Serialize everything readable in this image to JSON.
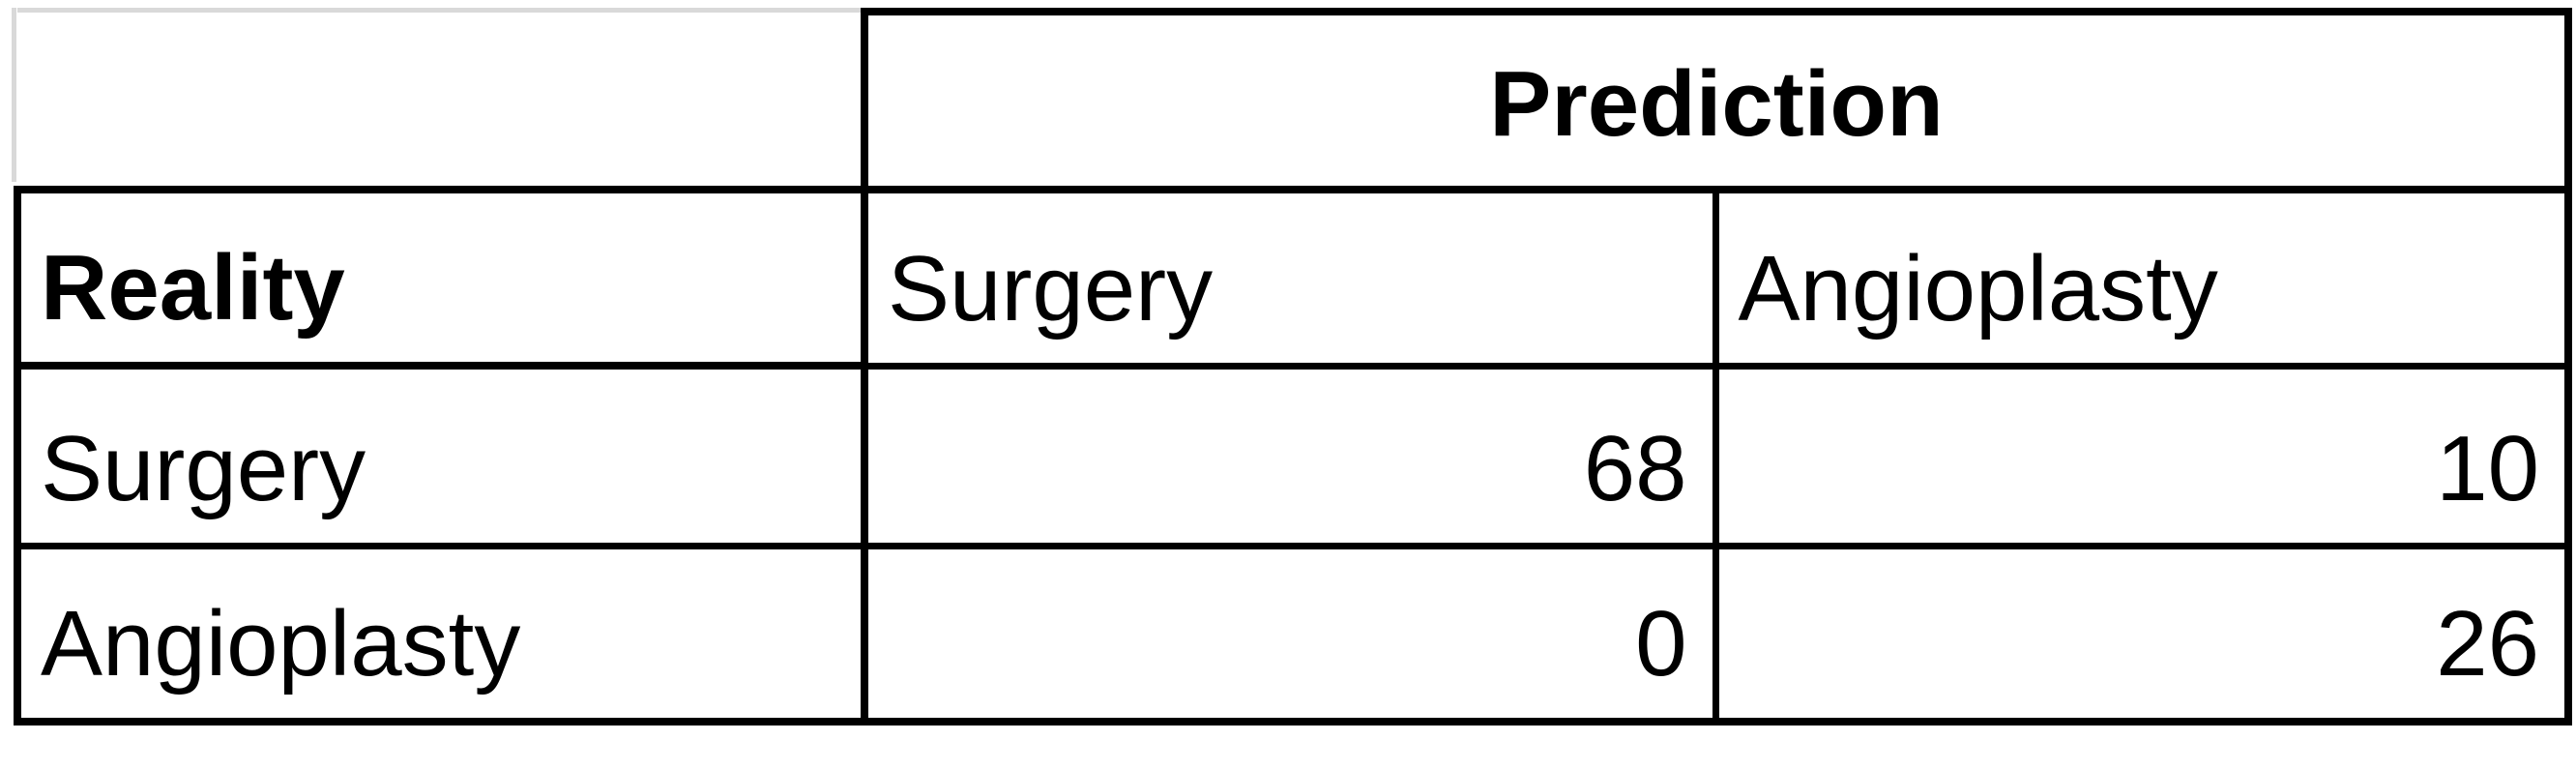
{
  "table": {
    "header": {
      "corner": "",
      "prediction_label": "Prediction",
      "reality_label": "Reality",
      "columns": [
        "Surgery",
        "Angioplasty"
      ]
    },
    "rows": [
      {
        "label": "Surgery",
        "values": [
          "68",
          "10"
        ]
      },
      {
        "label": "Angioplasty",
        "values": [
          "0",
          "26"
        ]
      }
    ]
  }
}
